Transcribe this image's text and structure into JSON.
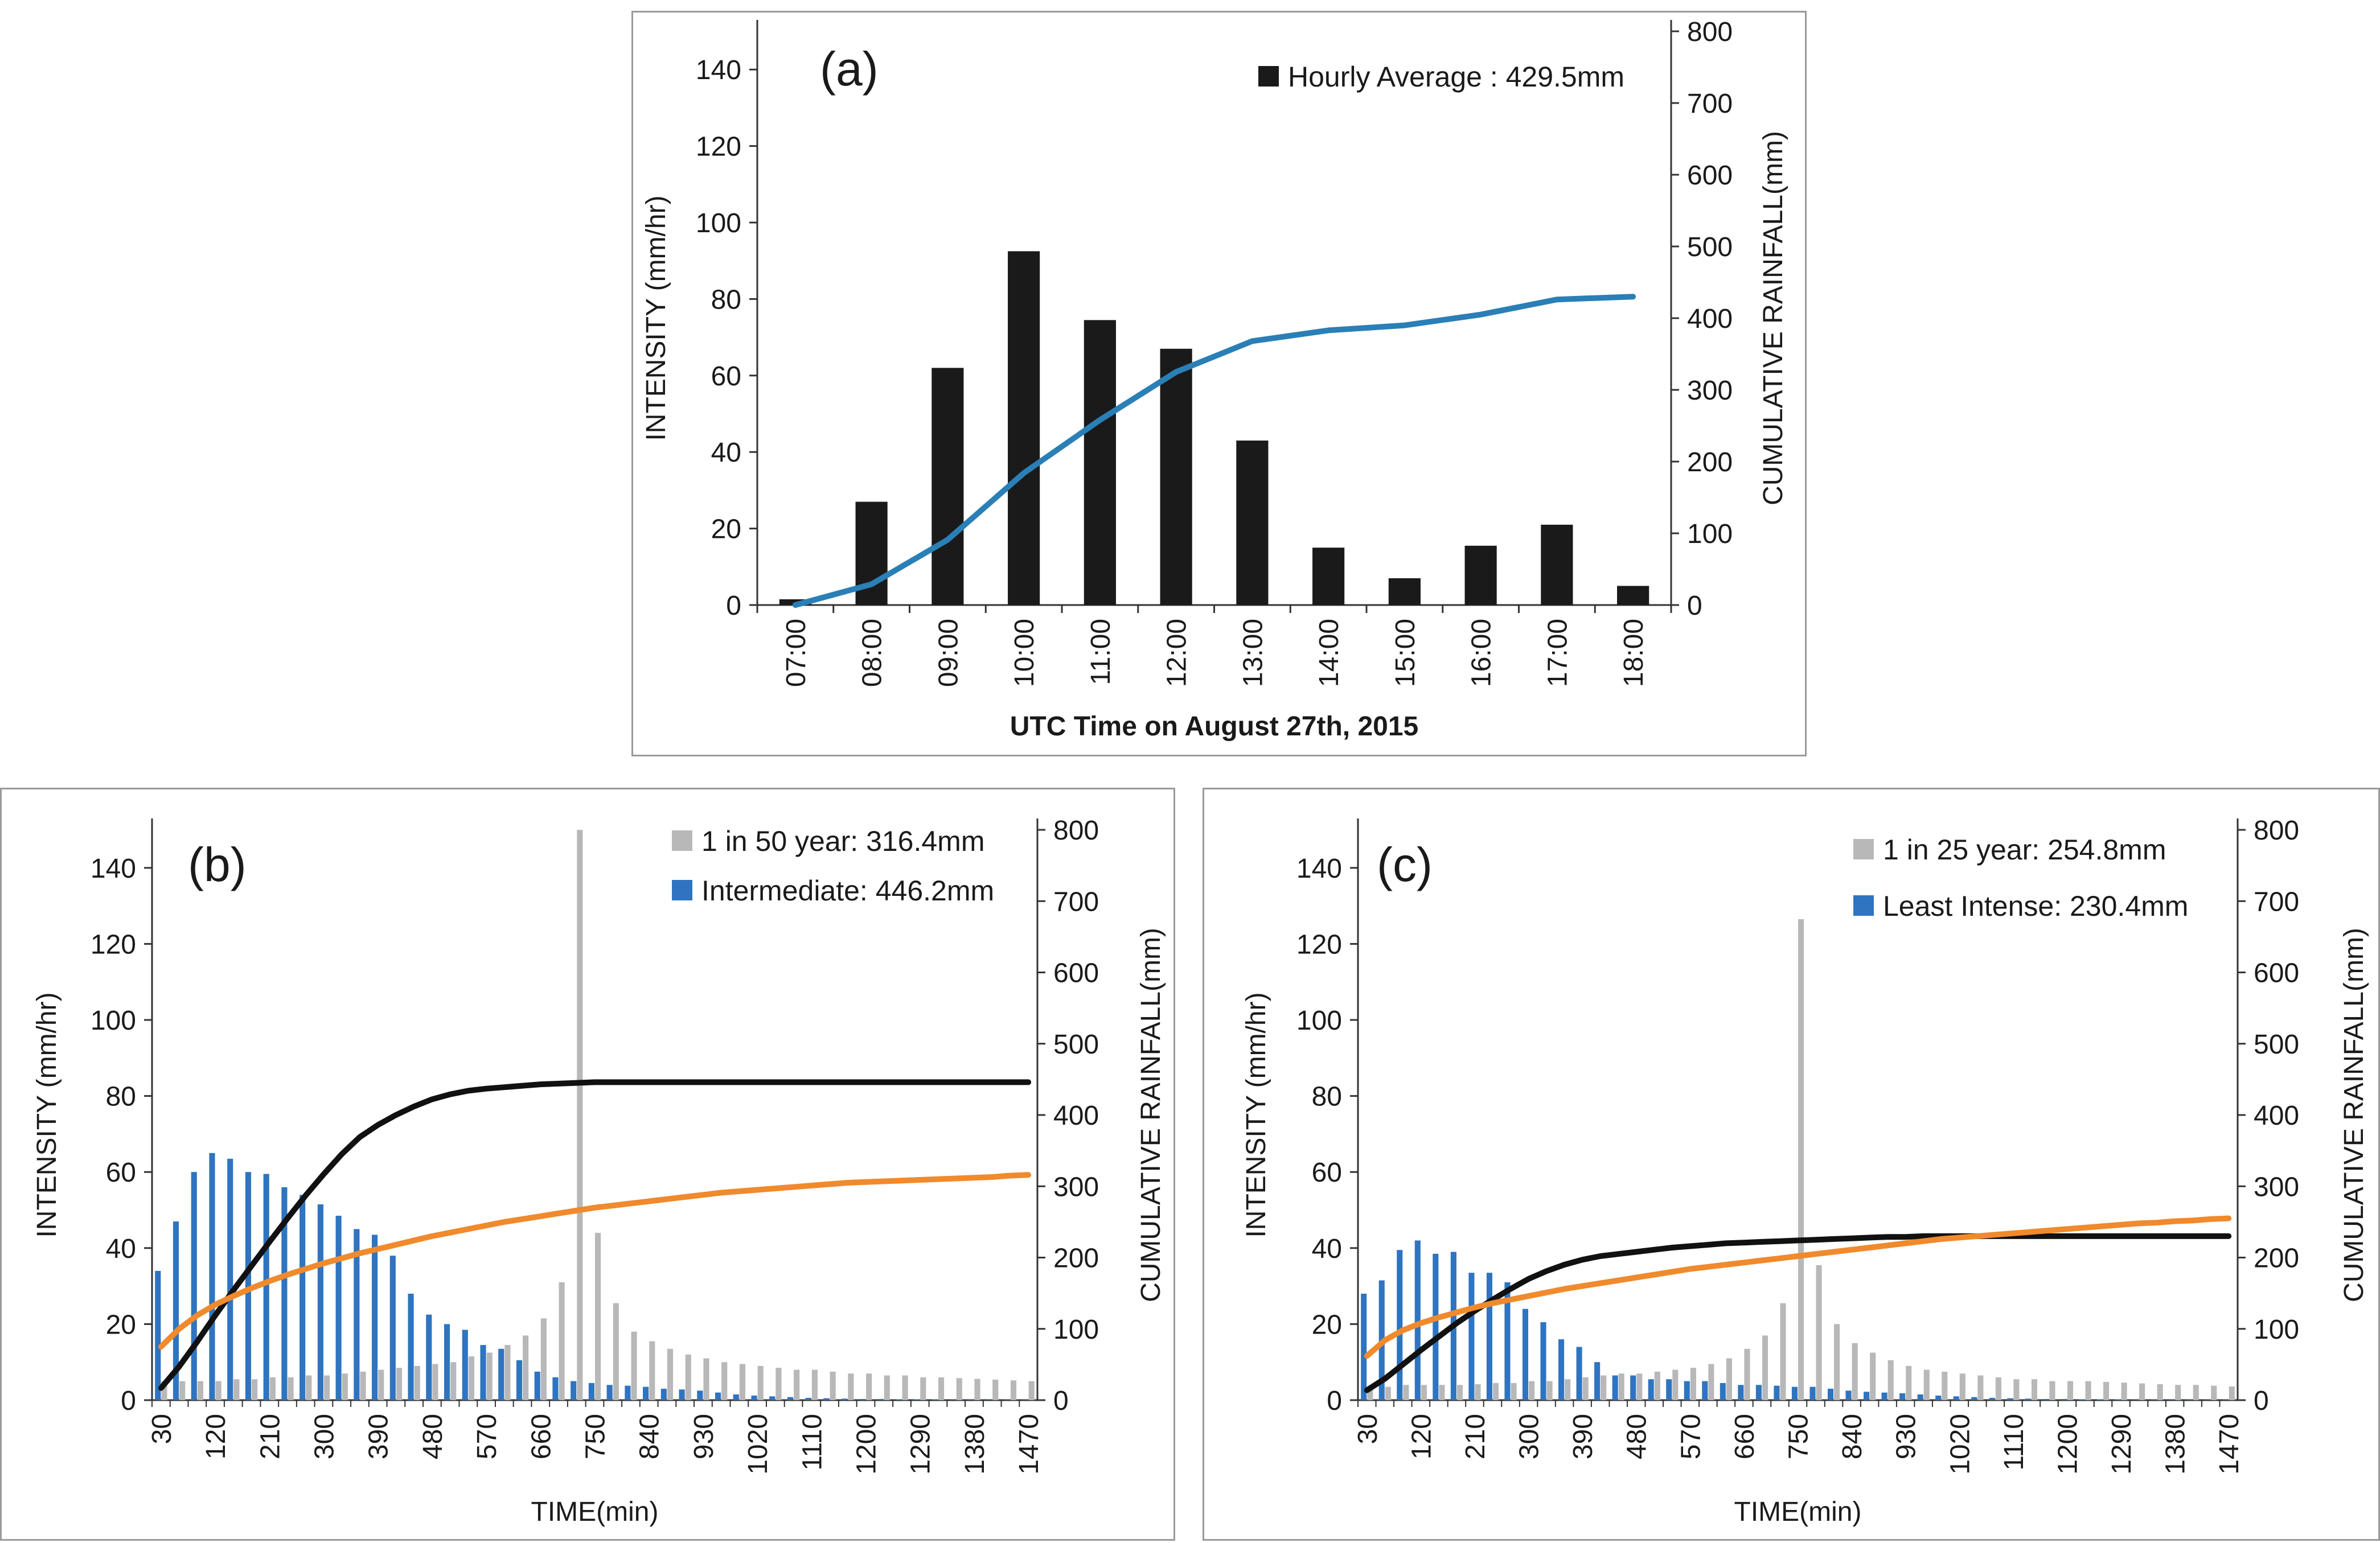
{
  "chart_data": [
    {
      "id": "a",
      "type": "bar+line",
      "panel_label": "(a)",
      "xlabel": "UTC Time on August 27th, 2015",
      "ylabel": "INTENSITY (mm/hr)",
      "y2label": "CUMULATIVE RAINFALL(mm)",
      "ylim": [
        0,
        150
      ],
      "y2lim": [
        0,
        800
      ],
      "yticks": [
        "0",
        "20",
        "40",
        "60",
        "80",
        "100",
        "120",
        "140"
      ],
      "y2ticks": [
        "0",
        "100",
        "200",
        "300",
        "400",
        "500",
        "600",
        "700",
        "800"
      ],
      "categories": [
        "07:00",
        "08:00",
        "09:00",
        "10:00",
        "11:00",
        "12:00",
        "13:00",
        "14:00",
        "15:00",
        "16:00",
        "17:00",
        "18:00"
      ],
      "bar_series": [
        {
          "name": "Hourly Average",
          "legend": "Hourly Average : 429.5mm",
          "color": "#1a1a1a",
          "values": [
            1.5,
            27,
            62,
            92.5,
            74.5,
            67,
            43,
            15,
            7,
            15.5,
            21,
            5
          ]
        }
      ],
      "line_series": [
        {
          "name": "Cumulative",
          "color": "#2a7fb6",
          "values": [
            0,
            29,
            91,
            184,
            258,
            325,
            368,
            383,
            390,
            405,
            426,
            430
          ]
        }
      ]
    },
    {
      "id": "b",
      "type": "bar+line",
      "panel_label": "(b)",
      "xlabel": "TIME(min)",
      "ylabel": "INTENSITY (mm/hr)",
      "y2label": "CUMULATIVE RAINFALL(mm)",
      "ylim": [
        0,
        150
      ],
      "y2lim": [
        0,
        800
      ],
      "yticks": [
        "0",
        "20",
        "40",
        "60",
        "80",
        "100",
        "120",
        "140"
      ],
      "y2ticks": [
        "0",
        "100",
        "200",
        "300",
        "400",
        "500",
        "600",
        "700",
        "800"
      ],
      "xticks": [
        "30",
        "120",
        "210",
        "300",
        "390",
        "480",
        "570",
        "660",
        "750",
        "840",
        "930",
        "1020",
        "1110",
        "1200",
        "1290",
        "1380",
        "1470"
      ],
      "x": [
        30,
        60,
        90,
        120,
        150,
        180,
        210,
        240,
        270,
        300,
        330,
        360,
        390,
        420,
        450,
        480,
        510,
        540,
        570,
        600,
        630,
        660,
        690,
        720,
        750,
        780,
        810,
        840,
        870,
        900,
        930,
        960,
        990,
        1020,
        1050,
        1080,
        1110,
        1140,
        1170,
        1200,
        1230,
        1260,
        1290,
        1320,
        1350,
        1380,
        1410,
        1440,
        1470
      ],
      "bar_series": [
        {
          "name": "1 in 50 year",
          "legend": "1 in 50 year: 316.4mm",
          "color": "#b8b8b8",
          "values": [
            5,
            5,
            5,
            5,
            5.5,
            5.5,
            6,
            6,
            6.5,
            6.5,
            7,
            7.5,
            8,
            8.5,
            9,
            9.5,
            10,
            11.5,
            12.5,
            14.5,
            17,
            21.5,
            31,
            150,
            44,
            25.5,
            18,
            15.5,
            13.5,
            12,
            11,
            10,
            9.5,
            9,
            8.5,
            8,
            8,
            7.5,
            7,
            7,
            6.5,
            6.5,
            6,
            6,
            5.8,
            5.6,
            5.4,
            5.2,
            5
          ]
        },
        {
          "name": "Intermediate",
          "legend": "Intermediate: 446.2mm",
          "color": "#2f74c0",
          "values": [
            34,
            47,
            60,
            65,
            63.5,
            60,
            59.5,
            56,
            54,
            51.5,
            48.5,
            45,
            43.5,
            38,
            28,
            22.5,
            20,
            18.5,
            14.5,
            13.5,
            10.5,
            7.5,
            6,
            5,
            4.5,
            4,
            3.8,
            3.5,
            3,
            2.8,
            2.5,
            2,
            1.5,
            1.2,
            1,
            0.8,
            0.6,
            0.5,
            0.4,
            0.3,
            0.3,
            0.2,
            0.2,
            0.2,
            0.1,
            0.1,
            0.1,
            0.1,
            0.1
          ]
        }
      ],
      "line_series": [
        {
          "name": "Intermediate cumulative",
          "color": "#111111",
          "values": [
            17,
            47,
            82,
            119,
            154,
            188,
            222,
            255,
            287,
            317,
            345,
            369,
            386,
            400,
            412,
            422,
            429,
            434,
            437,
            439,
            441,
            443,
            444,
            445,
            446,
            446,
            446,
            446,
            446,
            446,
            446,
            446,
            446,
            446,
            446,
            446,
            446,
            446,
            446,
            446,
            446,
            446,
            446,
            446,
            446,
            446,
            446,
            446,
            446
          ]
        },
        {
          "name": "1 in 50 year cumulative",
          "color": "#f08a2c",
          "values": [
            75,
            100,
            119,
            134,
            146,
            157,
            167,
            176,
            184,
            192,
            199,
            206,
            212,
            218,
            224,
            230,
            235,
            240,
            245,
            250,
            254,
            258,
            262,
            266,
            270,
            273,
            276,
            279,
            282,
            285,
            288,
            291,
            293,
            295,
            297,
            299,
            301,
            303,
            305,
            306,
            307,
            308,
            309,
            310,
            311,
            312,
            313,
            315,
            316
          ]
        }
      ]
    },
    {
      "id": "c",
      "type": "bar+line",
      "panel_label": "(c)",
      "xlabel": "TIME(min)",
      "ylabel": "INTENSITY (mm/hr)",
      "y2label": "CUMULATIVE RAINFALL(mm)",
      "ylim": [
        0,
        150
      ],
      "y2lim": [
        0,
        800
      ],
      "yticks": [
        "0",
        "20",
        "40",
        "60",
        "80",
        "100",
        "120",
        "140"
      ],
      "y2ticks": [
        "0",
        "100",
        "200",
        "300",
        "400",
        "500",
        "600",
        "700",
        "800"
      ],
      "xticks": [
        "30",
        "120",
        "210",
        "300",
        "390",
        "480",
        "570",
        "660",
        "750",
        "840",
        "930",
        "1020",
        "1110",
        "1200",
        "1290",
        "1380",
        "1470"
      ],
      "x": [
        30,
        60,
        90,
        120,
        150,
        180,
        210,
        240,
        270,
        300,
        330,
        360,
        390,
        420,
        450,
        480,
        510,
        540,
        570,
        600,
        630,
        660,
        690,
        720,
        750,
        780,
        810,
        840,
        870,
        900,
        930,
        960,
        990,
        1020,
        1050,
        1080,
        1110,
        1140,
        1170,
        1200,
        1230,
        1260,
        1290,
        1320,
        1350,
        1380,
        1410,
        1440,
        1470
      ],
      "bar_series": [
        {
          "name": "1 in 25 year",
          "legend": "1 in 25 year: 254.8mm",
          "color": "#b8b8b8",
          "values": [
            3.5,
            3.5,
            4,
            4,
            4,
            4,
            4.2,
            4.5,
            4.5,
            5,
            5,
            5.5,
            6,
            6.5,
            7,
            7,
            7.5,
            8,
            8.5,
            9.5,
            11,
            13.5,
            17,
            25.5,
            126.5,
            35.5,
            20,
            15,
            12.5,
            10.5,
            9,
            8,
            7.5,
            7,
            6.5,
            6,
            5.5,
            5.5,
            5,
            5,
            5,
            4.8,
            4.6,
            4.4,
            4.2,
            4,
            4,
            3.8,
            3.6
          ]
        },
        {
          "name": "Least Intense",
          "legend": "Least Intense: 230.4mm",
          "color": "#2f74c0",
          "values": [
            28,
            31.5,
            39.5,
            42,
            38.5,
            39,
            33.5,
            33.5,
            31,
            24,
            20.5,
            16,
            14,
            10,
            6.5,
            6.5,
            5.5,
            5.5,
            5,
            5,
            4.5,
            4,
            4,
            3.8,
            3.5,
            3.5,
            3,
            2.5,
            2.2,
            2,
            1.8,
            1.5,
            1.2,
            1,
            0.8,
            0.6,
            0.5,
            0.4,
            0.3,
            0.3,
            0.2,
            0.2,
            0.2,
            0.1,
            0.1,
            0.1,
            0.1,
            0.1,
            0.1
          ]
        }
      ],
      "line_series": [
        {
          "name": "Least Intense cumulative",
          "color": "#111111",
          "values": [
            14,
            30,
            50,
            70,
            89,
            108,
            125,
            141,
            156,
            170,
            181,
            190,
            197,
            202,
            205,
            208,
            211,
            214,
            216,
            218,
            220,
            221,
            222,
            223,
            224,
            225,
            226,
            227,
            228,
            229,
            229,
            230,
            230,
            230,
            230,
            230,
            230,
            230,
            230,
            230,
            230,
            230,
            230,
            230,
            230,
            230,
            230,
            230,
            230
          ]
        },
        {
          "name": "1 in 25 year cumulative",
          "color": "#f08a2c",
          "values": [
            62,
            84,
            98,
            108,
            116,
            123,
            130,
            136,
            141,
            146,
            151,
            156,
            160,
            164,
            168,
            172,
            176,
            180,
            184,
            187,
            190,
            193,
            196,
            199,
            202,
            205,
            208,
            211,
            214,
            217,
            220,
            223,
            226,
            228,
            230,
            232,
            234,
            236,
            238,
            240,
            242,
            244,
            246,
            248,
            249,
            251,
            252,
            254,
            255
          ]
        }
      ]
    }
  ]
}
